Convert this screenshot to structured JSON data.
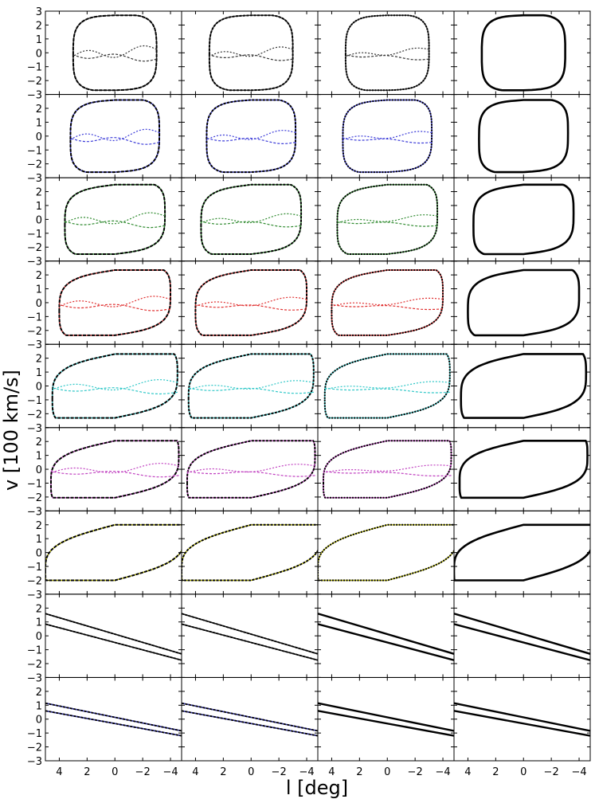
{
  "chart_data": {
    "type": "line",
    "xlabel": "l [deg]",
    "ylabel": "v [100 km/s]",
    "xlim": [
      5,
      -4.8
    ],
    "ylim": [
      -3,
      3
    ],
    "x_ticks": [
      4,
      2,
      0,
      -2,
      -4
    ],
    "x_tick_labels": [
      "4",
      "2",
      "0",
      "−2",
      "−4"
    ],
    "y_ticks": [
      3,
      2,
      1,
      0,
      -1,
      -2,
      -3
    ],
    "y_tick_labels": [
      "3",
      "2",
      "1",
      "0",
      "−1",
      "−2",
      "−3"
    ],
    "n_cols": 4,
    "rows": [
      {
        "color": "#333333",
        "loop": {
          "l_max": 3.0,
          "v_max": 2.7,
          "l_top": 2.2,
          "bulge": 0.95
        },
        "inner": true
      },
      {
        "color": "#3a3ad8",
        "loop": {
          "l_max": 3.2,
          "v_max": 2.6,
          "l_top": 2.2,
          "bulge": 0.9
        },
        "inner": true
      },
      {
        "color": "#2f8a2f",
        "loop": {
          "l_max": 3.6,
          "v_max": 2.5,
          "l_top": 2.6,
          "bulge": 0.8
        },
        "inner": true
      },
      {
        "color": "#e03030",
        "loop": {
          "l_max": 4.0,
          "v_max": 2.35,
          "l_top": 3.0,
          "bulge": 0.7
        },
        "inner": true
      },
      {
        "color": "#30c8c8",
        "loop": {
          "l_max": 4.5,
          "v_max": 2.3,
          "l_top": 3.5,
          "bulge": 0.55
        },
        "inner": true
      },
      {
        "color": "#c040c0",
        "loop": {
          "l_max": 4.6,
          "v_max": 2.05,
          "l_top": 3.8,
          "bulge": 0.45
        },
        "inner": true
      },
      {
        "color": "#c8c800",
        "loop": {
          "l_max": 5.0,
          "v_max": 2.0,
          "l_top": 5.0,
          "bulge": 0.25
        },
        "inner": false
      },
      {
        "color": "#111111",
        "lines": [
          [
            1.6,
            -1.3
          ],
          [
            0.85,
            -1.75
          ]
        ],
        "inner": false
      },
      {
        "color": "#3030b0",
        "lines": [
          [
            1.15,
            -0.85
          ],
          [
            0.6,
            -1.2
          ]
        ],
        "inner": false
      }
    ]
  }
}
